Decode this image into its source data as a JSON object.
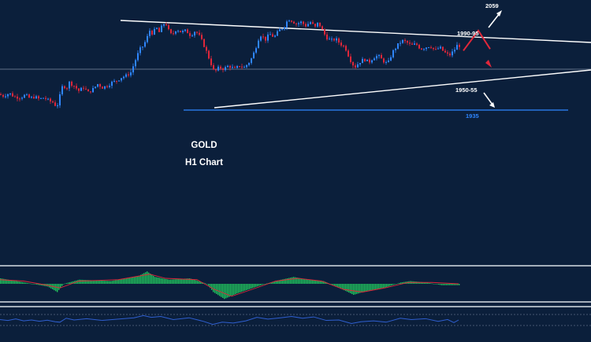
{
  "chart_data": {
    "type": "candlestick",
    "title": "GOLD",
    "subtitle": "H1 Chart",
    "colors": {
      "background": "#0b1f3b",
      "bull": "#2f86ff",
      "bear": "#e0273a",
      "trendline": "#ffffff",
      "support_line": "#2f86ff",
      "forecast_arrow": "#e0273a",
      "macd_hist": "#22c55e",
      "macd_signal": "#e0273a",
      "oscillator_line": "#2f5fd0",
      "panel_border": "#d8dde5"
    },
    "levels": [
      {
        "label": "2059",
        "value": 2059
      },
      {
        "label": "1990-95",
        "value": 1992.5
      },
      {
        "label": "1950-55",
        "value": 1952.5
      },
      {
        "label": "1935",
        "value": 1935
      }
    ],
    "price_path": [
      [
        0,
        1954
      ],
      [
        6,
        1952
      ],
      [
        14,
        1955
      ],
      [
        20,
        1951
      ],
      [
        28,
        1950
      ],
      [
        34,
        1953
      ],
      [
        40,
        1949
      ],
      [
        46,
        1951
      ],
      [
        52,
        1948
      ],
      [
        58,
        1950
      ],
      [
        64,
        1946
      ],
      [
        70,
        1944
      ],
      [
        74,
        1938
      ],
      [
        78,
        1952
      ],
      [
        82,
        1966
      ],
      [
        86,
        1960
      ],
      [
        90,
        1968
      ],
      [
        96,
        1964
      ],
      [
        102,
        1958
      ],
      [
        108,
        1962
      ],
      [
        114,
        1956
      ],
      [
        120,
        1960
      ],
      [
        126,
        1966
      ],
      [
        132,
        1962
      ],
      [
        138,
        1964
      ],
      [
        144,
        1968
      ],
      [
        150,
        1970
      ],
      [
        156,
        1974
      ],
      [
        162,
        1976
      ],
      [
        168,
        1980
      ],
      [
        172,
        1990
      ],
      [
        176,
        2000
      ],
      [
        180,
        2008
      ],
      [
        184,
        2012
      ],
      [
        188,
        2020
      ],
      [
        192,
        2030
      ],
      [
        196,
        2026
      ],
      [
        200,
        2034
      ],
      [
        204,
        2028
      ],
      [
        208,
        2036
      ],
      [
        212,
        2040
      ],
      [
        216,
        2030
      ],
      [
        220,
        2024
      ],
      [
        226,
        2032
      ],
      [
        232,
        2028
      ],
      [
        238,
        2030
      ],
      [
        244,
        2024
      ],
      [
        250,
        2030
      ],
      [
        256,
        2022
      ],
      [
        262,
        2010
      ],
      [
        266,
        2000
      ],
      [
        270,
        1990
      ],
      [
        274,
        1980
      ],
      [
        280,
        1986
      ],
      [
        286,
        1984
      ],
      [
        292,
        1988
      ],
      [
        300,
        1984
      ],
      [
        306,
        1988
      ],
      [
        312,
        1986
      ],
      [
        318,
        1992
      ],
      [
        322,
        1998
      ],
      [
        326,
        2008
      ],
      [
        330,
        2020
      ],
      [
        334,
        2026
      ],
      [
        338,
        2018
      ],
      [
        344,
        2026
      ],
      [
        350,
        2022
      ],
      [
        356,
        2030
      ],
      [
        362,
        2034
      ],
      [
        368,
        2044
      ],
      [
        372,
        2042
      ],
      [
        378,
        2038
      ],
      [
        384,
        2040
      ],
      [
        390,
        2036
      ],
      [
        396,
        2040
      ],
      [
        402,
        2034
      ],
      [
        406,
        2040
      ],
      [
        410,
        2032
      ],
      [
        416,
        2022
      ],
      [
        422,
        2018
      ],
      [
        428,
        2020
      ],
      [
        434,
        2014
      ],
      [
        440,
        2010
      ],
      [
        446,
        1996
      ],
      [
        452,
        1986
      ],
      [
        458,
        1992
      ],
      [
        464,
        1996
      ],
      [
        470,
        1992
      ],
      [
        476,
        1998
      ],
      [
        482,
        2000
      ],
      [
        488,
        1994
      ],
      [
        494,
        1990
      ],
      [
        500,
        2004
      ],
      [
        506,
        2012
      ],
      [
        512,
        2018
      ],
      [
        518,
        2016
      ],
      [
        524,
        2012
      ],
      [
        530,
        2014
      ],
      [
        536,
        2008
      ],
      [
        542,
        2010
      ],
      [
        548,
        2012
      ],
      [
        554,
        2006
      ],
      [
        560,
        2010
      ],
      [
        566,
        2004
      ],
      [
        572,
        2000
      ],
      [
        578,
        2006
      ],
      [
        582,
        2012
      ]
    ],
    "forecast_arrow": [
      [
        588,
        2006
      ],
      [
        607,
        2030
      ],
      [
        622,
        2008
      ]
    ],
    "macd": {
      "histogram": [
        [
          0,
          4
        ],
        [
          20,
          2
        ],
        [
          40,
          0
        ],
        [
          60,
          -2
        ],
        [
          72,
          -6
        ],
        [
          80,
          0
        ],
        [
          100,
          3
        ],
        [
          140,
          2
        ],
        [
          160,
          4
        ],
        [
          176,
          6
        ],
        [
          186,
          9
        ],
        [
          196,
          5
        ],
        [
          214,
          3
        ],
        [
          240,
          4
        ],
        [
          262,
          0
        ],
        [
          270,
          -6
        ],
        [
          284,
          -11
        ],
        [
          300,
          -7
        ],
        [
          320,
          -3
        ],
        [
          336,
          0
        ],
        [
          356,
          3
        ],
        [
          372,
          5
        ],
        [
          390,
          3
        ],
        [
          410,
          2
        ],
        [
          430,
          -3
        ],
        [
          448,
          -8
        ],
        [
          466,
          -5
        ],
        [
          486,
          -3
        ],
        [
          508,
          1
        ],
        [
          520,
          2
        ],
        [
          540,
          1
        ],
        [
          560,
          -1
        ],
        [
          582,
          -1
        ]
      ],
      "signal": [
        [
          0,
          3
        ],
        [
          30,
          2
        ],
        [
          60,
          -1
        ],
        [
          76,
          -3
        ],
        [
          100,
          2
        ],
        [
          150,
          3
        ],
        [
          190,
          7
        ],
        [
          210,
          4
        ],
        [
          250,
          3
        ],
        [
          272,
          -4
        ],
        [
          294,
          -9
        ],
        [
          320,
          -4
        ],
        [
          350,
          2
        ],
        [
          378,
          4
        ],
        [
          408,
          2
        ],
        [
          436,
          -4
        ],
        [
          460,
          -6
        ],
        [
          488,
          -3
        ],
        [
          518,
          1
        ],
        [
          548,
          1
        ],
        [
          582,
          0
        ]
      ],
      "ylim": [
        -12,
        12
      ]
    },
    "oscillator": {
      "values": [
        [
          0,
          52
        ],
        [
          10,
          48
        ],
        [
          20,
          55
        ],
        [
          30,
          46
        ],
        [
          40,
          50
        ],
        [
          50,
          44
        ],
        [
          60,
          49
        ],
        [
          70,
          42
        ],
        [
          76,
          40
        ],
        [
          84,
          58
        ],
        [
          94,
          50
        ],
        [
          110,
          56
        ],
        [
          130,
          48
        ],
        [
          150,
          54
        ],
        [
          170,
          60
        ],
        [
          182,
          70
        ],
        [
          192,
          62
        ],
        [
          204,
          66
        ],
        [
          220,
          52
        ],
        [
          240,
          60
        ],
        [
          258,
          44
        ],
        [
          270,
          30
        ],
        [
          282,
          40
        ],
        [
          296,
          36
        ],
        [
          312,
          46
        ],
        [
          326,
          62
        ],
        [
          340,
          54
        ],
        [
          356,
          60
        ],
        [
          370,
          66
        ],
        [
          384,
          58
        ],
        [
          398,
          64
        ],
        [
          414,
          48
        ],
        [
          430,
          50
        ],
        [
          446,
          34
        ],
        [
          458,
          42
        ],
        [
          474,
          46
        ],
        [
          490,
          40
        ],
        [
          508,
          58
        ],
        [
          522,
          52
        ],
        [
          540,
          56
        ],
        [
          556,
          44
        ],
        [
          568,
          52
        ],
        [
          576,
          38
        ],
        [
          582,
          50
        ]
      ],
      "ylim": [
        0,
        100
      ]
    },
    "ylim": [
      1925,
      2075
    ],
    "xlim": [
      0,
      750
    ]
  }
}
